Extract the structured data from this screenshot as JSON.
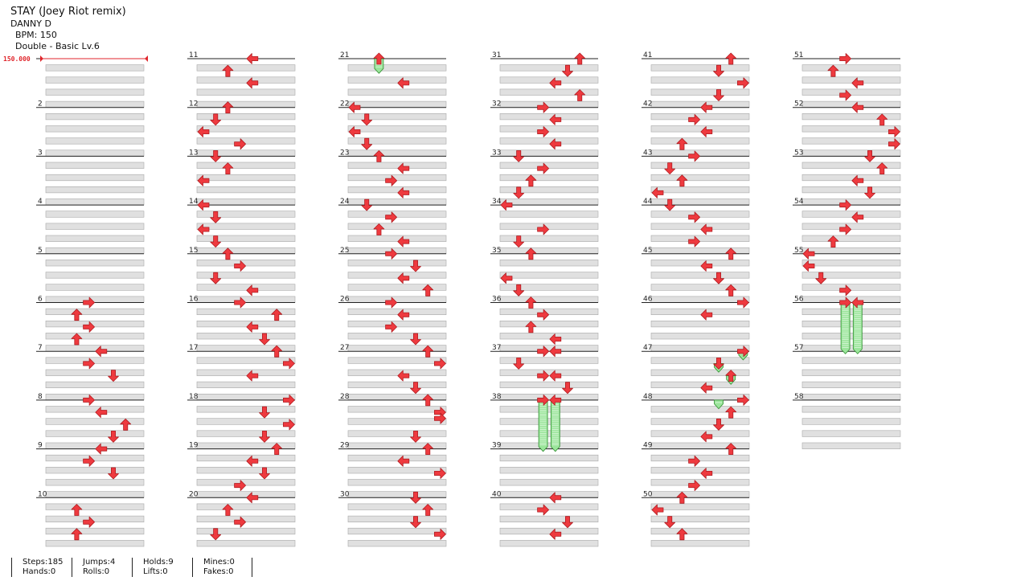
{
  "song": {
    "title": "STAY (Joey Riot remix)",
    "artist": "DANNY D",
    "bpm_text": "BPM: 150",
    "difficulty_text": "Double - Basic Lv.6"
  },
  "bpm_marker": {
    "text": "150.000",
    "color": "#e0262c"
  },
  "colors": {
    "arrow": "#ee3a3f",
    "arrow_stroke": "#b01d22",
    "hold_fill": "#9be59b",
    "hold_stroke": "#2f8f2f",
    "band": "#e0e0e0"
  },
  "chart": {
    "measures": 58,
    "measures_per_column": 10,
    "note_glyphs": [
      "left-arrow-icon",
      "down-arrow-icon",
      "up-arrow-icon",
      "right-arrow-icon"
    ],
    "notes": [
      [
        6,
        0,
        3
      ],
      [
        6,
        2,
        2
      ],
      [
        6,
        4,
        3
      ],
      [
        6,
        6,
        2
      ],
      [
        6,
        8,
        4
      ],
      [
        6,
        10,
        3
      ],
      [
        6,
        12,
        5
      ],
      [
        8,
        0,
        3
      ],
      [
        8,
        2,
        4
      ],
      [
        8,
        4,
        6
      ],
      [
        8,
        6,
        5
      ],
      [
        8,
        8,
        4
      ],
      [
        8,
        10,
        3
      ],
      [
        8,
        12,
        5
      ],
      [
        10,
        2,
        2
      ],
      [
        10,
        4,
        3
      ],
      [
        10,
        6,
        2
      ],
      [
        11,
        0,
        4
      ],
      [
        11,
        2,
        2
      ],
      [
        11,
        4,
        4
      ],
      [
        12,
        0,
        2
      ],
      [
        12,
        2,
        1
      ],
      [
        12,
        4,
        0
      ],
      [
        12,
        6,
        3
      ],
      [
        13,
        0,
        1
      ],
      [
        13,
        2,
        2
      ],
      [
        13,
        4,
        0
      ],
      [
        14,
        0,
        0
      ],
      [
        14,
        2,
        1
      ],
      [
        14,
        4,
        0
      ],
      [
        14,
        6,
        1
      ],
      [
        15,
        0,
        2
      ],
      [
        15,
        2,
        3
      ],
      [
        15,
        4,
        1
      ],
      [
        15,
        6,
        4
      ],
      [
        16,
        0,
        3
      ],
      [
        16,
        2,
        6
      ],
      [
        16,
        4,
        4
      ],
      [
        16,
        6,
        5
      ],
      [
        17,
        0,
        6
      ],
      [
        17,
        2,
        7
      ],
      [
        17,
        4,
        4
      ],
      [
        18,
        0,
        7
      ],
      [
        18,
        2,
        5
      ],
      [
        18,
        4,
        7
      ],
      [
        18,
        6,
        5
      ],
      [
        19,
        0,
        6
      ],
      [
        19,
        2,
        4
      ],
      [
        19,
        4,
        5
      ],
      [
        19,
        6,
        3
      ],
      [
        20,
        0,
        4
      ],
      [
        20,
        2,
        2
      ],
      [
        20,
        4,
        3
      ],
      [
        20,
        6,
        1
      ],
      [
        21,
        0,
        2
      ],
      [
        21,
        4,
        4
      ],
      [
        22,
        0,
        0
      ],
      [
        22,
        2,
        1
      ],
      [
        22,
        4,
        0
      ],
      [
        22,
        6,
        1
      ],
      [
        23,
        0,
        2
      ],
      [
        23,
        2,
        4
      ],
      [
        23,
        4,
        3
      ],
      [
        23,
        6,
        4
      ],
      [
        24,
        0,
        1
      ],
      [
        24,
        2,
        3
      ],
      [
        24,
        4,
        2
      ],
      [
        24,
        6,
        4
      ],
      [
        25,
        0,
        3
      ],
      [
        25,
        2,
        5
      ],
      [
        25,
        4,
        4
      ],
      [
        25,
        6,
        6
      ],
      [
        26,
        0,
        3
      ],
      [
        26,
        2,
        4
      ],
      [
        26,
        4,
        3
      ],
      [
        26,
        6,
        5
      ],
      [
        27,
        0,
        6
      ],
      [
        27,
        2,
        7
      ],
      [
        27,
        4,
        4
      ],
      [
        27,
        6,
        5
      ],
      [
        28,
        0,
        6
      ],
      [
        28,
        2,
        7
      ],
      [
        28,
        3,
        7
      ],
      [
        28,
        6,
        5
      ],
      [
        29,
        0,
        6
      ],
      [
        29,
        2,
        4
      ],
      [
        29,
        4,
        7
      ],
      [
        30,
        0,
        5
      ],
      [
        30,
        2,
        6
      ],
      [
        30,
        4,
        5
      ],
      [
        30,
        6,
        7
      ],
      [
        31,
        0,
        6
      ],
      [
        31,
        2,
        5
      ],
      [
        31,
        4,
        4
      ],
      [
        31,
        6,
        6
      ],
      [
        32,
        0,
        3
      ],
      [
        32,
        2,
        4
      ],
      [
        32,
        4,
        3
      ],
      [
        32,
        6,
        4
      ],
      [
        33,
        0,
        1
      ],
      [
        33,
        2,
        3
      ],
      [
        33,
        4,
        2
      ],
      [
        33,
        6,
        1
      ],
      [
        34,
        0,
        0
      ],
      [
        34,
        4,
        3
      ],
      [
        34,
        6,
        1
      ],
      [
        35,
        0,
        2
      ],
      [
        35,
        4,
        0
      ],
      [
        35,
        6,
        1
      ],
      [
        36,
        0,
        2
      ],
      [
        36,
        2,
        3
      ],
      [
        36,
        4,
        2
      ],
      [
        36,
        6,
        4
      ],
      [
        37,
        0,
        3
      ],
      [
        37,
        0,
        4
      ],
      [
        37,
        2,
        1
      ],
      [
        37,
        4,
        3
      ],
      [
        37,
        4,
        4
      ],
      [
        37,
        6,
        5
      ],
      [
        38,
        0,
        3
      ],
      [
        38,
        0,
        4
      ],
      [
        40,
        0,
        4
      ],
      [
        40,
        2,
        3
      ],
      [
        40,
        4,
        5
      ],
      [
        40,
        6,
        4
      ],
      [
        41,
        0,
        6
      ],
      [
        41,
        2,
        5
      ],
      [
        41,
        4,
        7
      ],
      [
        41,
        6,
        5
      ],
      [
        42,
        0,
        4
      ],
      [
        42,
        2,
        3
      ],
      [
        42,
        4,
        4
      ],
      [
        42,
        6,
        2
      ],
      [
        43,
        0,
        3
      ],
      [
        43,
        2,
        1
      ],
      [
        43,
        4,
        2
      ],
      [
        43,
        6,
        0
      ],
      [
        44,
        0,
        1
      ],
      [
        44,
        2,
        3
      ],
      [
        44,
        4,
        4
      ],
      [
        44,
        6,
        3
      ],
      [
        45,
        0,
        6
      ],
      [
        45,
        2,
        4
      ],
      [
        45,
        4,
        5
      ],
      [
        45,
        6,
        6
      ],
      [
        46,
        0,
        7
      ],
      [
        46,
        2,
        4
      ],
      [
        47,
        0,
        7
      ],
      [
        47,
        2,
        5
      ],
      [
        47,
        4,
        6
      ],
      [
        47,
        6,
        4
      ],
      [
        48,
        0,
        7
      ],
      [
        48,
        2,
        6
      ],
      [
        48,
        4,
        5
      ],
      [
        48,
        6,
        4
      ],
      [
        49,
        0,
        6
      ],
      [
        49,
        2,
        3
      ],
      [
        49,
        4,
        4
      ],
      [
        49,
        6,
        3
      ],
      [
        50,
        0,
        2
      ],
      [
        50,
        2,
        0
      ],
      [
        50,
        4,
        1
      ],
      [
        50,
        6,
        2
      ],
      [
        51,
        0,
        3
      ],
      [
        51,
        2,
        2
      ],
      [
        51,
        4,
        4
      ],
      [
        51,
        6,
        3
      ],
      [
        52,
        0,
        4
      ],
      [
        52,
        2,
        6
      ],
      [
        52,
        4,
        7
      ],
      [
        52,
        6,
        7
      ],
      [
        53,
        0,
        5
      ],
      [
        53,
        2,
        6
      ],
      [
        53,
        4,
        4
      ],
      [
        53,
        6,
        5
      ],
      [
        54,
        0,
        3
      ],
      [
        54,
        2,
        4
      ],
      [
        54,
        4,
        3
      ],
      [
        54,
        6,
        2
      ],
      [
        55,
        0,
        0
      ],
      [
        55,
        2,
        0
      ],
      [
        55,
        4,
        1
      ],
      [
        55,
        6,
        3
      ],
      [
        56,
        0,
        3
      ],
      [
        56,
        0,
        4
      ]
    ],
    "holds": [
      [
        21,
        0,
        2,
        21,
        2
      ],
      [
        38,
        0,
        3,
        39,
        0
      ],
      [
        38,
        0,
        4,
        39,
        0
      ],
      [
        47,
        0,
        7,
        47,
        1
      ],
      [
        47,
        2,
        5,
        47,
        3
      ],
      [
        47,
        4,
        6,
        47,
        5
      ],
      [
        48,
        0,
        5,
        48,
        1
      ],
      [
        56,
        0,
        3,
        57,
        0
      ],
      [
        56,
        0,
        4,
        57,
        0
      ]
    ]
  },
  "stats": [
    {
      "line1": "Steps:185",
      "line2": "Hands:0"
    },
    {
      "line1": "Jumps:4",
      "line2": "Rolls:0"
    },
    {
      "line1": "Holds:9",
      "line2": "Lifts:0"
    },
    {
      "line1": "Mines:0",
      "line2": "Fakes:0"
    }
  ]
}
